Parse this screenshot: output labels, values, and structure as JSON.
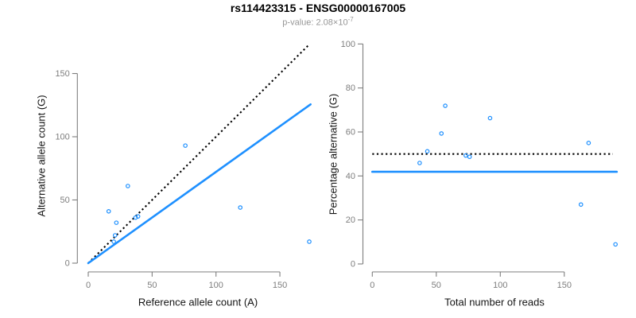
{
  "header": {
    "title": "rs114423315 - ENSG00000167005",
    "subtitle_prefix": "p-value: 2.08×10",
    "subtitle_exponent": "-7"
  },
  "colors": {
    "accent_blue": "#1E90FF",
    "axis_gray": "#7E7E7E",
    "dotted_line_black": "#000000",
    "subtitle_gray": "#969696",
    "label_black": "#141414"
  },
  "chart_data": [
    {
      "type": "scatter",
      "panel": "left",
      "xlabel": "Reference allele count (A)",
      "ylabel": "Alternative allele count (G)",
      "xticks": [
        0,
        50,
        100,
        150
      ],
      "yticks": [
        0,
        50,
        100,
        150
      ],
      "xlim": [
        0,
        175
      ],
      "ylim": [
        0,
        175
      ],
      "grid": false,
      "legend": false,
      "points": [
        [
          16,
          41
        ],
        [
          20,
          17
        ],
        [
          21,
          22
        ],
        [
          22,
          32
        ],
        [
          31,
          61
        ],
        [
          37,
          36
        ],
        [
          39,
          37
        ],
        [
          76,
          93
        ],
        [
          119,
          44
        ],
        [
          173,
          17
        ]
      ],
      "lines": [
        {
          "name": "identity-line",
          "style": "dotted",
          "color": "black",
          "x1": 0,
          "y1": 0,
          "x2": 172,
          "y2": 172
        },
        {
          "name": "fit-line",
          "style": "solid",
          "color": "blue",
          "x1": 0,
          "y1": 0,
          "x2": 174,
          "y2": 125.6
        }
      ]
    },
    {
      "type": "scatter",
      "panel": "right",
      "xlabel": "Total number of reads",
      "ylabel": "Percentage alternative (G)",
      "xticks": [
        0,
        50,
        100,
        150
      ],
      "yticks": [
        0,
        20,
        40,
        60,
        80,
        100
      ],
      "xlim": [
        0,
        192
      ],
      "ylim": [
        0,
        100
      ],
      "grid": false,
      "legend": false,
      "points": [
        [
          37,
          45.9
        ],
        [
          43,
          51.2
        ],
        [
          54,
          59.3
        ],
        [
          57,
          71.9
        ],
        [
          73,
          49.3
        ],
        [
          76,
          48.7
        ],
        [
          92,
          66.3
        ],
        [
          163,
          27
        ],
        [
          169,
          55
        ],
        [
          190,
          8.9
        ]
      ],
      "lines": [
        {
          "name": "expected-50pct-line",
          "style": "dotted",
          "color": "black",
          "x1": 0,
          "y1": 50,
          "x2": 188,
          "y2": 50
        },
        {
          "name": "fit-line",
          "style": "solid",
          "color": "blue",
          "x1": 0,
          "y1": 41.9,
          "x2": 191,
          "y2": 41.9
        }
      ]
    }
  ]
}
